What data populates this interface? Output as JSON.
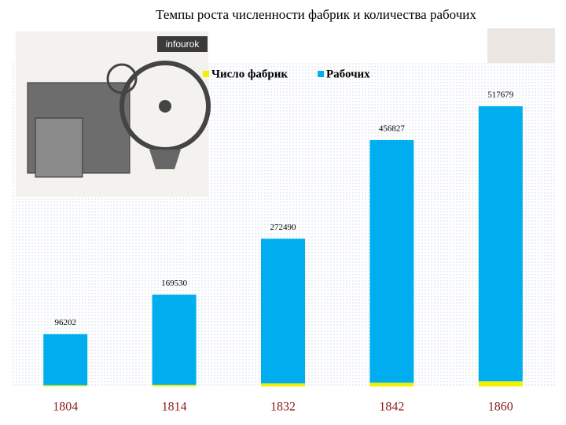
{
  "chart_data": {
    "type": "stacked-bar",
    "title": "Темпы роста численности фабрик и количества рабочих",
    "watermark": "infourok",
    "categories": [
      "1804",
      "1814",
      "1832",
      "1842",
      "1860"
    ],
    "series": [
      {
        "name": "Число фабрик",
        "color": "#f2f200",
        "values": [
          2423,
          3173,
          5656,
          6930,
          9843
        ]
      },
      {
        "name": "Рабочих",
        "color": "#00aeef",
        "values": [
          96202,
          169530,
          272490,
          456827,
          517679
        ]
      }
    ]
  }
}
